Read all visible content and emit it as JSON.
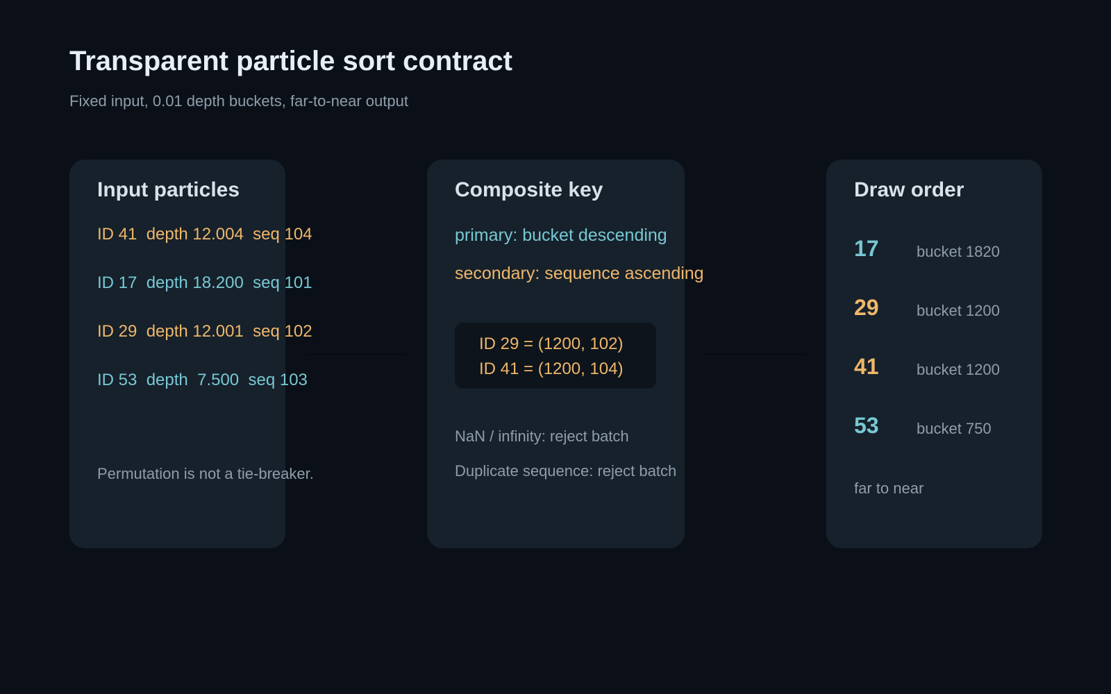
{
  "header": {
    "title": "Transparent particle sort contract",
    "subtitle": "Fixed input, 0.01 depth buckets, far-to-near output"
  },
  "colors": {
    "background": "#0b1018",
    "card": "#16212b",
    "amber": "#efb76a",
    "cyan": "#77c8d4",
    "muted": "#8f9dab"
  },
  "input_panel": {
    "title": "Input particles",
    "particles": [
      {
        "text": "ID 41  depth 12.004  seq 104",
        "color": "amber"
      },
      {
        "text": "ID 17  depth 18.200  seq 101",
        "color": "cyan"
      },
      {
        "text": "ID 29  depth 12.001  seq 102",
        "color": "amber"
      },
      {
        "text": "ID 53  depth  7.500  seq 103",
        "color": "cyan"
      }
    ],
    "note": "Permutation is not a tie-breaker."
  },
  "key_panel": {
    "title": "Composite key",
    "primary": "primary: bucket descending",
    "secondary": "secondary: sequence ascending",
    "examples": [
      "ID 29 = (1200, 102)",
      "ID 41 = (1200, 104)"
    ],
    "rules": [
      "NaN / infinity: reject batch",
      "Duplicate sequence: reject batch"
    ]
  },
  "order_panel": {
    "title": "Draw order",
    "entries": [
      {
        "id": "17",
        "bucket": "bucket 1820",
        "color": "cyan"
      },
      {
        "id": "29",
        "bucket": "bucket 1200",
        "color": "amber"
      },
      {
        "id": "41",
        "bucket": "bucket 1200",
        "color": "amber"
      },
      {
        "id": "53",
        "bucket": "bucket 750",
        "color": "cyan"
      }
    ],
    "note": "far to near"
  }
}
